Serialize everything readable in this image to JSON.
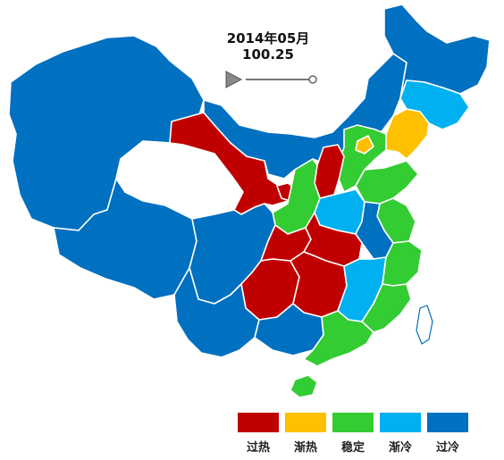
{
  "header": {
    "date": "2014年05月",
    "value": "100.25"
  },
  "player": {
    "play_icon": "play-icon",
    "slider_position": 1.0
  },
  "legend": {
    "items": [
      {
        "label": "过热",
        "color": "#c00000"
      },
      {
        "label": "渐热",
        "color": "#ffc000"
      },
      {
        "label": "稳定",
        "color": "#33cc33"
      },
      {
        "label": "渐冷",
        "color": "#00b0f0"
      },
      {
        "label": "过冷",
        "color": "#0070c0"
      }
    ]
  }
}
